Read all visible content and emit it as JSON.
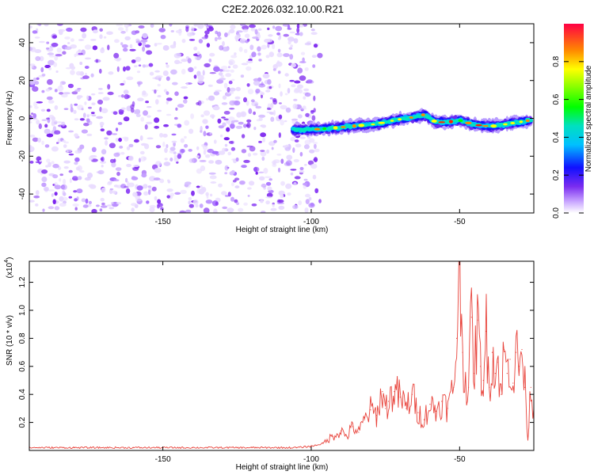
{
  "chart_data": [
    {
      "type": "heatmap",
      "title": "C2E2.2026.032.10.00.R21",
      "xlabel": "Height of straight line (km)",
      "ylabel": "Frequency (Hz)",
      "xlim": [
        -195,
        -25
      ],
      "ylim": [
        -50,
        50
      ],
      "xticks": [
        -150,
        -100,
        -50
      ],
      "yticks": [
        -40,
        -20,
        0,
        20,
        40
      ],
      "noise_region_x": [
        -195,
        -97
      ],
      "signal_track": {
        "x": [
          -106,
          -100,
          -92,
          -85,
          -78,
          -72,
          -68,
          -64,
          -62,
          -58,
          -54,
          -50,
          -46,
          -42,
          -38,
          -34,
          -30,
          -26
        ],
        "freq": [
          -6,
          -6,
          -5,
          -4,
          -3,
          -1,
          0,
          1,
          2,
          -2,
          -2,
          -1,
          -3,
          -4,
          -4,
          -3,
          -2,
          -1
        ]
      },
      "colorbar": {
        "label": "Normalized spectral amplitude",
        "ticks": [
          0.0,
          0.2,
          0.4,
          0.6,
          0.8
        ],
        "range": [
          0,
          1
        ]
      }
    },
    {
      "type": "line",
      "xlabel": "Height of straight line (km)",
      "ylabel": "SNR (10 * v/v)",
      "scale_label": "(x10",
      "scale_exponent": "4",
      "xlim": [
        -195,
        -25
      ],
      "ylim": [
        0,
        1.35
      ],
      "xticks": [
        -150,
        -100,
        -50
      ],
      "yticks": [
        0.2,
        0.4,
        0.6,
        0.8,
        1.0,
        1.2
      ],
      "line_color": "#e8423a",
      "series": {
        "x": [
          -195,
          -180,
          -160,
          -140,
          -120,
          -105,
          -100,
          -96,
          -93,
          -90,
          -88,
          -86,
          -84,
          -82,
          -80,
          -78,
          -76,
          -75,
          -74,
          -72,
          -70,
          -68,
          -66,
          -64,
          -62,
          -60,
          -58,
          -56,
          -54,
          -52,
          -51,
          -50,
          -49,
          -48,
          -47,
          -46,
          -45,
          -44,
          -43,
          -42,
          -41,
          -40,
          -39,
          -38,
          -37,
          -36,
          -35,
          -34,
          -33,
          -32,
          -31,
          -30,
          -29,
          -28,
          -27,
          -26,
          -25
        ],
        "y": [
          0.02,
          0.02,
          0.02,
          0.02,
          0.02,
          0.02,
          0.03,
          0.05,
          0.1,
          0.14,
          0.1,
          0.17,
          0.13,
          0.22,
          0.29,
          0.25,
          0.42,
          0.3,
          0.35,
          0.42,
          0.38,
          0.3,
          0.4,
          0.27,
          0.22,
          0.33,
          0.28,
          0.35,
          0.3,
          0.45,
          0.8,
          1.35,
          0.7,
          0.5,
          0.45,
          0.95,
          0.55,
          0.93,
          0.6,
          0.5,
          0.85,
          0.45,
          0.7,
          0.55,
          0.63,
          0.4,
          0.72,
          0.55,
          0.65,
          0.48,
          0.7,
          0.6,
          0.72,
          0.45,
          0.1,
          0.45,
          0.3
        ]
      }
    }
  ]
}
